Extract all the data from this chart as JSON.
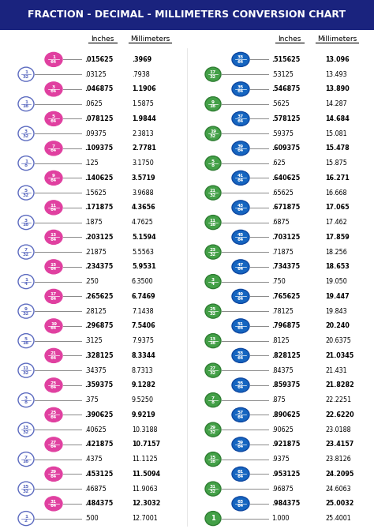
{
  "title": "FRACTION - DECIMAL - MILLIMETERS CONVERSION CHART",
  "title_bg": "#1a237e",
  "title_color": "#ffffff",
  "left_rows": [
    {
      "num": 1,
      "den": 64,
      "inches": ".015625",
      "mm": ".3969",
      "bold": true
    },
    {
      "num": 1,
      "den": 32,
      "inches": ".03125",
      "mm": ".7938",
      "bold": false
    },
    {
      "num": 3,
      "den": 64,
      "inches": ".046875",
      "mm": "1.1906",
      "bold": true
    },
    {
      "num": 1,
      "den": 16,
      "inches": ".0625",
      "mm": "1.5875",
      "bold": false
    },
    {
      "num": 5,
      "den": 64,
      "inches": ".078125",
      "mm": "1.9844",
      "bold": true
    },
    {
      "num": 3,
      "den": 32,
      "inches": ".09375",
      "mm": "2.3813",
      "bold": false
    },
    {
      "num": 7,
      "den": 64,
      "inches": ".109375",
      "mm": "2.7781",
      "bold": true
    },
    {
      "num": 1,
      "den": 8,
      "inches": ".125",
      "mm": "3.1750",
      "bold": false
    },
    {
      "num": 9,
      "den": 64,
      "inches": ".140625",
      "mm": "3.5719",
      "bold": true
    },
    {
      "num": 5,
      "den": 32,
      "inches": ".15625",
      "mm": "3.9688",
      "bold": false
    },
    {
      "num": 11,
      "den": 64,
      "inches": ".171875",
      "mm": "4.3656",
      "bold": true
    },
    {
      "num": 3,
      "den": 16,
      "inches": ".1875",
      "mm": "4.7625",
      "bold": false
    },
    {
      "num": 13,
      "den": 64,
      "inches": ".203125",
      "mm": "5.1594",
      "bold": true
    },
    {
      "num": 7,
      "den": 32,
      "inches": ".21875",
      "mm": "5.5563",
      "bold": false
    },
    {
      "num": 15,
      "den": 64,
      "inches": ".234375",
      "mm": "5.9531",
      "bold": true
    },
    {
      "num": 1,
      "den": 4,
      "inches": ".250",
      "mm": "6.3500",
      "bold": false
    },
    {
      "num": 17,
      "den": 64,
      "inches": ".265625",
      "mm": "6.7469",
      "bold": true
    },
    {
      "num": 9,
      "den": 32,
      "inches": ".28125",
      "mm": "7.1438",
      "bold": false
    },
    {
      "num": 19,
      "den": 64,
      "inches": ".296875",
      "mm": "7.5406",
      "bold": true
    },
    {
      "num": 5,
      "den": 16,
      "inches": ".3125",
      "mm": "7.9375",
      "bold": false
    },
    {
      "num": 21,
      "den": 64,
      "inches": ".328125",
      "mm": "8.3344",
      "bold": true
    },
    {
      "num": 11,
      "den": 32,
      "inches": ".34375",
      "mm": "8.7313",
      "bold": false
    },
    {
      "num": 23,
      "den": 64,
      "inches": ".359375",
      "mm": "9.1282",
      "bold": true
    },
    {
      "num": 3,
      "den": 8,
      "inches": ".375",
      "mm": "9.5250",
      "bold": false
    },
    {
      "num": 25,
      "den": 64,
      "inches": ".390625",
      "mm": "9.9219",
      "bold": true
    },
    {
      "num": 13,
      "den": 32,
      "inches": ".40625",
      "mm": "10.3188",
      "bold": false
    },
    {
      "num": 27,
      "den": 64,
      "inches": ".421875",
      "mm": "10.7157",
      "bold": true
    },
    {
      "num": 7,
      "den": 16,
      "inches": ".4375",
      "mm": "11.1125",
      "bold": false
    },
    {
      "num": 29,
      "den": 64,
      "inches": ".453125",
      "mm": "11.5094",
      "bold": true
    },
    {
      "num": 15,
      "den": 32,
      "inches": ".46875",
      "mm": "11.9063",
      "bold": false
    },
    {
      "num": 31,
      "den": 64,
      "inches": ".484375",
      "mm": "12.3032",
      "bold": true
    },
    {
      "num": 1,
      "den": 2,
      "inches": ".500",
      "mm": "12.7001",
      "bold": false
    }
  ],
  "right_rows": [
    {
      "num": 33,
      "den": 64,
      "inches": ".515625",
      "mm": "13.096",
      "bold": true
    },
    {
      "num": 17,
      "den": 32,
      "inches": ".53125",
      "mm": "13.493",
      "bold": false
    },
    {
      "num": 35,
      "den": 64,
      "inches": ".546875",
      "mm": "13.890",
      "bold": true
    },
    {
      "num": 9,
      "den": 16,
      "inches": ".5625",
      "mm": "14.287",
      "bold": false
    },
    {
      "num": 37,
      "den": 64,
      "inches": ".578125",
      "mm": "14.684",
      "bold": true
    },
    {
      "num": 19,
      "den": 32,
      "inches": ".59375",
      "mm": "15.081",
      "bold": false
    },
    {
      "num": 39,
      "den": 64,
      "inches": ".609375",
      "mm": "15.478",
      "bold": true
    },
    {
      "num": 5,
      "den": 8,
      "inches": ".625",
      "mm": "15.875",
      "bold": false
    },
    {
      "num": 41,
      "den": 64,
      "inches": ".640625",
      "mm": "16.271",
      "bold": true
    },
    {
      "num": 21,
      "den": 32,
      "inches": ".65625",
      "mm": "16.668",
      "bold": false
    },
    {
      "num": 43,
      "den": 64,
      "inches": ".671875",
      "mm": "17.065",
      "bold": true
    },
    {
      "num": 11,
      "den": 16,
      "inches": ".6875",
      "mm": "17.462",
      "bold": false
    },
    {
      "num": 45,
      "den": 64,
      "inches": ".703125",
      "mm": "17.859",
      "bold": true
    },
    {
      "num": 23,
      "den": 32,
      "inches": ".71875",
      "mm": "18.256",
      "bold": false
    },
    {
      "num": 47,
      "den": 64,
      "inches": ".734375",
      "mm": "18.653",
      "bold": true
    },
    {
      "num": 3,
      "den": 4,
      "inches": ".750",
      "mm": "19.050",
      "bold": false
    },
    {
      "num": 49,
      "den": 64,
      "inches": ".765625",
      "mm": "19.447",
      "bold": true
    },
    {
      "num": 25,
      "den": 32,
      "inches": ".78125",
      "mm": "19.843",
      "bold": false
    },
    {
      "num": 51,
      "den": 64,
      "inches": ".796875",
      "mm": "20.240",
      "bold": true
    },
    {
      "num": 13,
      "den": 16,
      "inches": ".8125",
      "mm": "20.6375",
      "bold": false
    },
    {
      "num": 53,
      "den": 64,
      "inches": ".828125",
      "mm": "21.0345",
      "bold": true
    },
    {
      "num": 27,
      "den": 32,
      "inches": ".84375",
      "mm": "21.431",
      "bold": false
    },
    {
      "num": 55,
      "den": 64,
      "inches": ".859375",
      "mm": "21.8282",
      "bold": true
    },
    {
      "num": 7,
      "den": 8,
      "inches": ".875",
      "mm": "22.2251",
      "bold": false
    },
    {
      "num": 57,
      "den": 64,
      "inches": ".890625",
      "mm": "22.6220",
      "bold": true
    },
    {
      "num": 29,
      "den": 32,
      "inches": ".90625",
      "mm": "23.0188",
      "bold": false
    },
    {
      "num": 59,
      "den": 64,
      "inches": ".921875",
      "mm": "23.4157",
      "bold": true
    },
    {
      "num": 15,
      "den": 16,
      "inches": ".9375",
      "mm": "23.8126",
      "bold": false
    },
    {
      "num": 61,
      "den": 64,
      "inches": ".953125",
      "mm": "24.2095",
      "bold": true
    },
    {
      "num": 31,
      "den": 32,
      "inches": ".96875",
      "mm": "24.6063",
      "bold": false
    },
    {
      "num": 63,
      "den": 64,
      "inches": ".984375",
      "mm": "25.0032",
      "bold": true
    },
    {
      "num": 1,
      "den": 1,
      "inches": "1.000",
      "mm": "25.4001",
      "bold": false
    }
  ],
  "left_pink": "#e040a0",
  "left_blue_fill": "#ffffff",
  "left_blue_edge": "#5c6bc0",
  "left_blue_text": "#5c6bc0",
  "right_blue64_fill": "#1565c0",
  "right_blue64_edge": "#0d47a1",
  "right_green_fill": "#43a047",
  "right_green_edge": "#2e7d32",
  "bg_color": "#ffffff"
}
